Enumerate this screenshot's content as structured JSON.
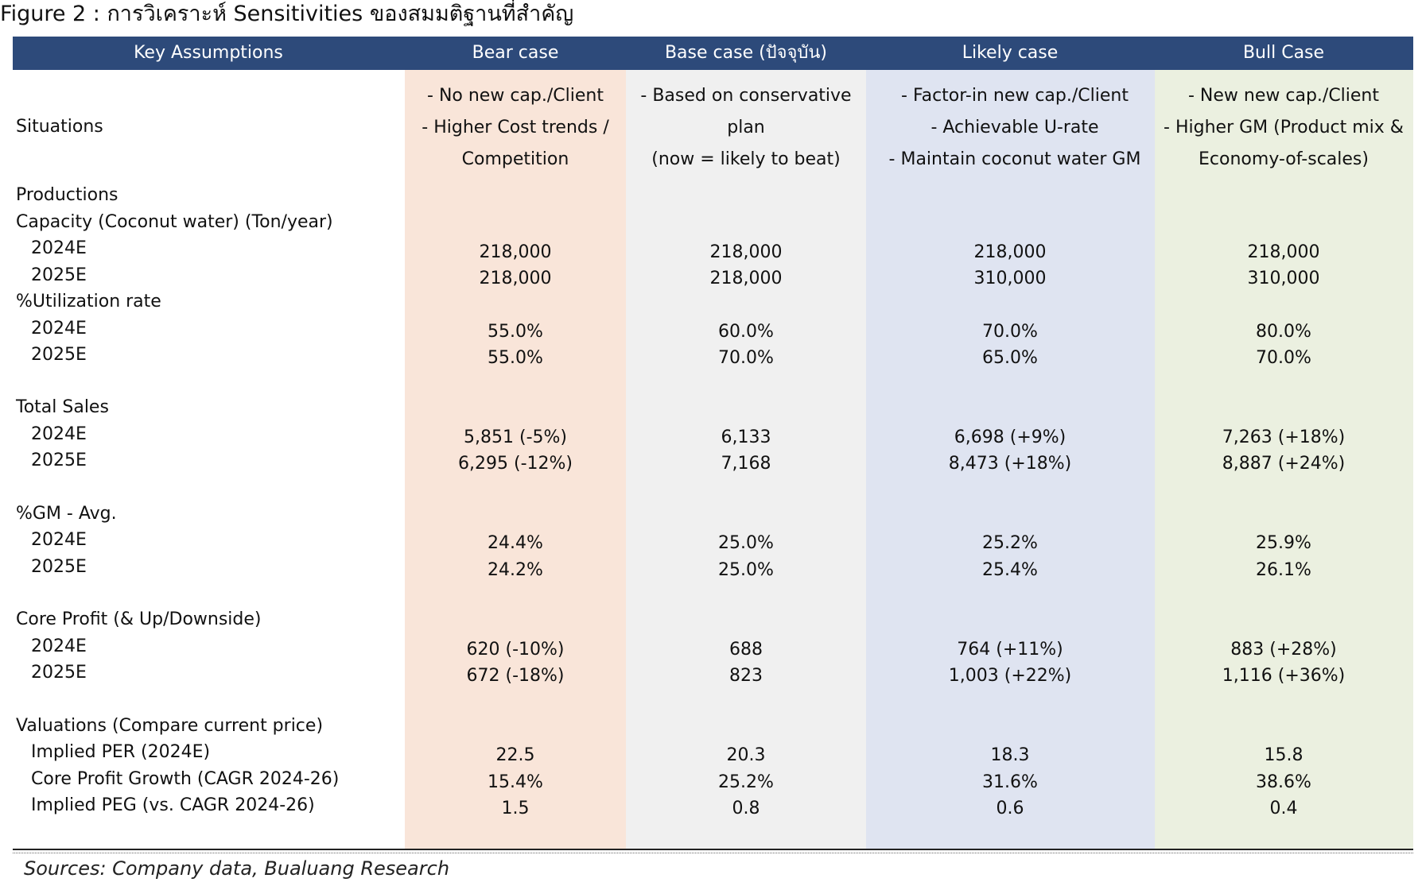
{
  "figure_title": "Figure 2 : การวิเคราะห์ Sensitivities ของสมมติฐานที่สำคัญ",
  "columns": {
    "key": "Key Assumptions",
    "bear": "Bear case",
    "base": "Base case (ปัจจุบัน)",
    "likely": "Likely case",
    "bull": "Bull Case"
  },
  "situations": {
    "label": "Situations",
    "bear": [
      "- No new cap./Client",
      "- Higher Cost trends /",
      "Competition"
    ],
    "base": [
      "- Based on conservative",
      "plan",
      "(now = likely to beat)"
    ],
    "likely": [
      "- Factor-in new cap./Client",
      "- Achievable U-rate",
      "- Maintain coconut water GM"
    ],
    "bull": [
      "- New new cap./Client",
      "- Higher GM (Product mix &",
      "Economy-of-scales)"
    ]
  },
  "productions": {
    "label": "Productions",
    "capacity_label": "Capacity (Coconut water) (Ton/year)",
    "rows": [
      {
        "year": "2024E",
        "bear": "218,000",
        "base": "218,000",
        "likely": "218,000",
        "bull": "218,000"
      },
      {
        "year": "2025E",
        "bear": "218,000",
        "base": "218,000",
        "likely": "310,000",
        "bull": "310,000"
      }
    ]
  },
  "utilization": {
    "label": "%Utilization rate",
    "rows": [
      {
        "year": "2024E",
        "bear": "55.0%",
        "base": "60.0%",
        "likely": "70.0%",
        "bull": "80.0%"
      },
      {
        "year": "2025E",
        "bear": "55.0%",
        "base": "70.0%",
        "likely": "65.0%",
        "bull": "70.0%"
      }
    ]
  },
  "total_sales": {
    "label": "Total Sales",
    "rows": [
      {
        "year": "2024E",
        "bear": "5,851 (-5%)",
        "base": "6,133",
        "likely": "6,698 (+9%)",
        "bull": "7,263 (+18%)"
      },
      {
        "year": "2025E",
        "bear": "6,295 (-12%)",
        "base": "7,168",
        "likely": "8,473 (+18%)",
        "bull": "8,887 (+24%)"
      }
    ]
  },
  "gm": {
    "label": "%GM - Avg.",
    "rows": [
      {
        "year": "2024E",
        "bear": "24.4%",
        "base": "25.0%",
        "likely": "25.2%",
        "bull": "25.9%"
      },
      {
        "year": "2025E",
        "bear": "24.2%",
        "base": "25.0%",
        "likely": "25.4%",
        "bull": "26.1%"
      }
    ]
  },
  "core_profit": {
    "label": "Core Profit (& Up/Downside)",
    "rows": [
      {
        "year": "2024E",
        "bear": "620 (-10%)",
        "base": "688",
        "likely": "764 (+11%)",
        "bull": "883 (+28%)"
      },
      {
        "year": "2025E",
        "bear": "672 (-18%)",
        "base": "823",
        "likely": "1,003 (+22%)",
        "bull": "1,116 (+36%)"
      }
    ]
  },
  "valuations": {
    "label": "Valuations (Compare current price)",
    "rows": [
      {
        "metric": "Implied PER (2024E)",
        "bear": "22.5",
        "base": "20.3",
        "likely": "18.3",
        "bull": "15.8"
      },
      {
        "metric": "Core Profit Growth (CAGR 2024-26)",
        "bear": "15.4%",
        "base": "25.2%",
        "likely": "31.6%",
        "bull": "38.6%"
      },
      {
        "metric": "Implied PEG (vs. CAGR 2024-26)",
        "bear": "1.5",
        "base": "0.8",
        "likely": "0.6",
        "bull": "0.4"
      }
    ]
  },
  "sources": "Sources: Company data, Bualuang Research"
}
